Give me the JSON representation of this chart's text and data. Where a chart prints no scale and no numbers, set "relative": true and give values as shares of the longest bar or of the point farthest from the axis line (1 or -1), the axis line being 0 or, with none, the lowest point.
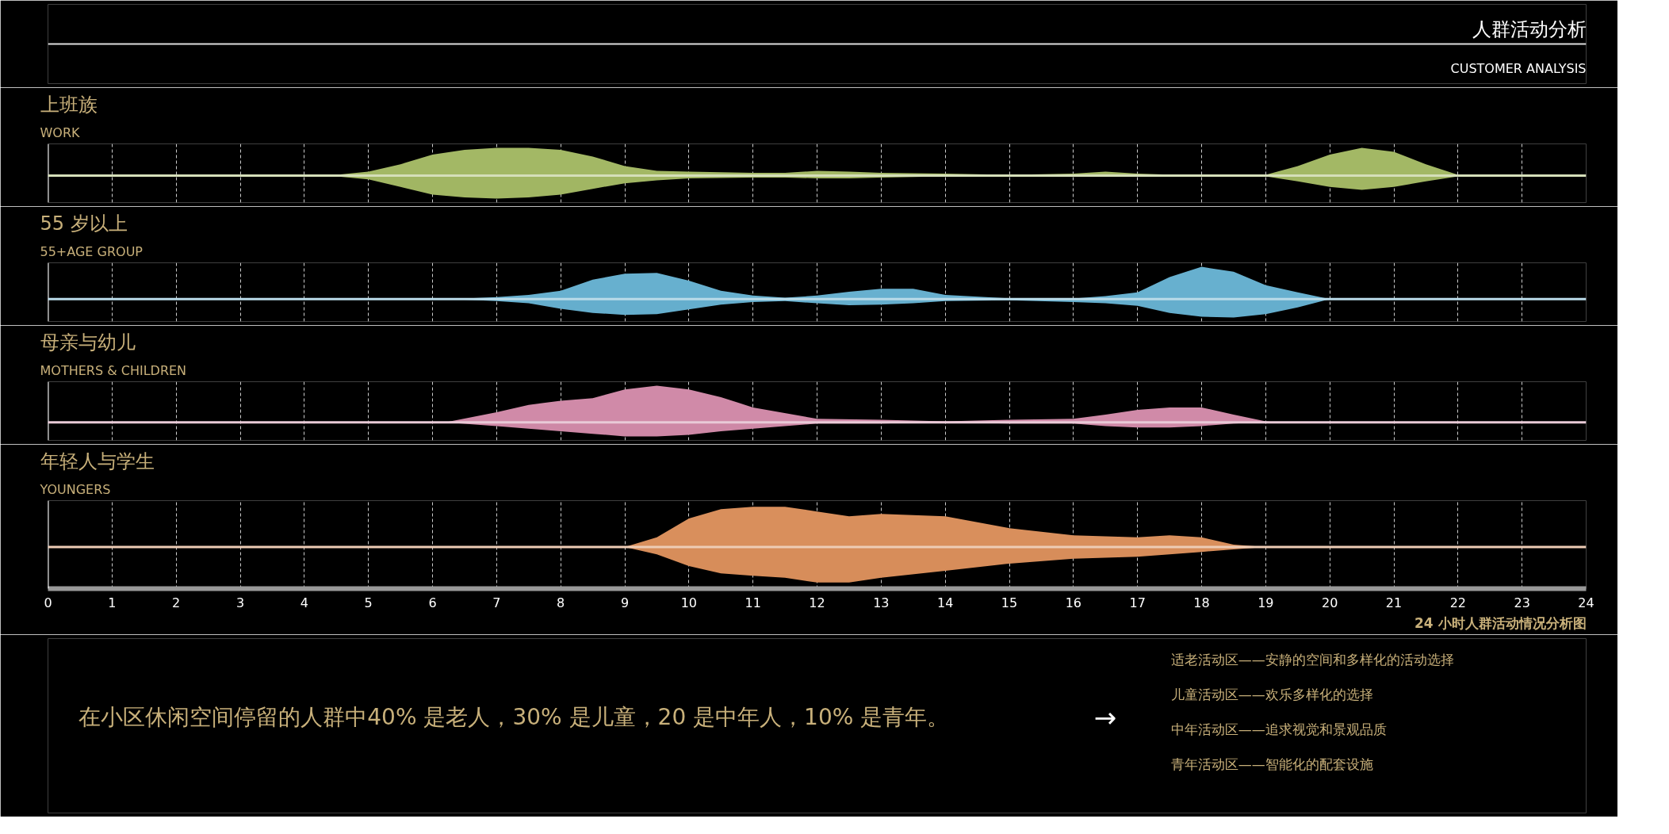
{
  "chart_data": [
    {
      "type": "other",
      "title": "人群活动分析",
      "subtitle": "CUSTOMER ANALYSIS"
    },
    {
      "type": "area",
      "relative": true,
      "title": "上班族",
      "subtitle": "WORK",
      "grid": "x",
      "tick_labels": false,
      "x": [
        0,
        4,
        4.5,
        5,
        5.5,
        6,
        6.5,
        7,
        7.5,
        8,
        8.5,
        9,
        9.5,
        10,
        11,
        11.5,
        12,
        12.5,
        13,
        14,
        15,
        16,
        16.5,
        17,
        18,
        19,
        19.5,
        20,
        20.5,
        21,
        21.5,
        22,
        24
      ],
      "xlim": [
        0,
        24
      ],
      "xticks": [
        0,
        1,
        2,
        3,
        4,
        5,
        6,
        7,
        8,
        9,
        10,
        11,
        12,
        13,
        14,
        15,
        16,
        17,
        18,
        19,
        20,
        21,
        22,
        23,
        24
      ],
      "series": [
        {
          "color": "#a3b865",
          "values": [
            0,
            0,
            0.03,
            0.14,
            0.41,
            0.76,
            0.93,
            1,
            1,
            0.93,
            0.69,
            0.34,
            0.17,
            0.14,
            0.1,
            0.1,
            0.17,
            0.14,
            0.1,
            0.07,
            0.03,
            0.07,
            0.14,
            0.07,
            0,
            0.03,
            0.34,
            0.76,
            1,
            0.86,
            0.41,
            0.03,
            0
          ]
        },
        {
          "color": "#a1b663",
          "values": [
            0,
            0,
            -0.03,
            -0.14,
            -0.41,
            -0.69,
            -0.79,
            -0.83,
            -0.79,
            -0.69,
            -0.48,
            -0.28,
            -0.17,
            -0.1,
            -0.07,
            -0.07,
            -0.1,
            -0.1,
            -0.07,
            -0.03,
            -0.03,
            0,
            0,
            0,
            0,
            -0.03,
            -0.21,
            -0.41,
            -0.52,
            -0.41,
            -0.21,
            -0.03,
            0
          ]
        }
      ]
    },
    {
      "type": "area",
      "relative": true,
      "title": "55 岁以上",
      "subtitle": "55+AGE GROUP",
      "grid": "x",
      "tick_labels": false,
      "x": [
        0,
        6,
        6.5,
        7,
        7.5,
        8,
        8.5,
        9,
        9.5,
        10,
        10.5,
        11,
        11.5,
        12,
        12.5,
        13,
        13.5,
        14,
        15,
        16,
        16.5,
        17,
        17.5,
        18,
        18.5,
        19,
        19.5,
        20,
        24
      ],
      "xlim": [
        0,
        24
      ],
      "xticks": [
        0,
        1,
        2,
        3,
        4,
        5,
        6,
        7,
        8,
        9,
        10,
        11,
        12,
        13,
        14,
        15,
        16,
        17,
        18,
        19,
        20,
        21,
        22,
        23,
        24
      ],
      "series": [
        {
          "color": "#67b0cf",
          "values": [
            0,
            0,
            0.02,
            0.06,
            0.13,
            0.26,
            0.6,
            0.79,
            0.81,
            0.57,
            0.26,
            0.11,
            0.04,
            0.11,
            0.23,
            0.32,
            0.32,
            0.13,
            0.02,
            0.02,
            0.09,
            0.21,
            0.68,
            1,
            0.85,
            0.43,
            0.21,
            0,
            0
          ]
        },
        {
          "color": "#65aecd",
          "values": [
            0,
            0,
            -0.02,
            -0.06,
            -0.13,
            -0.3,
            -0.43,
            -0.49,
            -0.47,
            -0.32,
            -0.17,
            -0.09,
            -0.06,
            -0.13,
            -0.19,
            -0.17,
            -0.13,
            -0.06,
            -0.04,
            -0.09,
            -0.13,
            -0.21,
            -0.43,
            -0.55,
            -0.57,
            -0.47,
            -0.26,
            0,
            0
          ]
        }
      ]
    },
    {
      "type": "area",
      "relative": true,
      "title": "母亲与幼儿",
      "subtitle": "MOTHERS & CHILDREN",
      "grid": "x",
      "tick_labels": false,
      "x": [
        0,
        6.2,
        7,
        7.5,
        8,
        8.5,
        9,
        9.5,
        10,
        10.5,
        11,
        12,
        13,
        14,
        15,
        16,
        16.5,
        17,
        17.5,
        18,
        18.5,
        19,
        19.2,
        24
      ],
      "xlim": [
        0,
        24
      ],
      "xticks": [
        0,
        1,
        2,
        3,
        4,
        5,
        6,
        7,
        8,
        9,
        10,
        11,
        12,
        13,
        14,
        15,
        16,
        17,
        18,
        19,
        20,
        21,
        22,
        23,
        24
      ],
      "series": [
        {
          "color": "#d08aa8",
          "values": [
            0,
            0,
            0.28,
            0.48,
            0.59,
            0.66,
            0.9,
            1,
            0.9,
            0.69,
            0.41,
            0.1,
            0.07,
            0.03,
            0.07,
            0.1,
            0.21,
            0.34,
            0.41,
            0.41,
            0.21,
            0.03,
            0,
            0
          ]
        },
        {
          "color": "#ce88a6",
          "values": [
            0,
            0,
            -0.1,
            -0.17,
            -0.24,
            -0.31,
            -0.38,
            -0.38,
            -0.34,
            -0.24,
            -0.17,
            -0.03,
            -0.03,
            0,
            -0.03,
            -0.03,
            -0.1,
            -0.14,
            -0.14,
            -0.1,
            -0.03,
            0,
            0,
            0
          ]
        }
      ]
    },
    {
      "type": "area",
      "relative": true,
      "title": "年轻人与学生",
      "subtitle": "YOUNGERS",
      "grid": "x",
      "tick_labels": "x",
      "x": [
        0,
        9,
        9.5,
        10,
        10.5,
        11,
        11.5,
        12,
        12.5,
        13,
        14,
        15,
        16,
        17,
        17.5,
        18,
        18.5,
        19,
        24
      ],
      "xlim": [
        0,
        24
      ],
      "xticks": [
        0,
        1,
        2,
        3,
        4,
        5,
        6,
        7,
        8,
        9,
        10,
        11,
        12,
        13,
        14,
        15,
        16,
        17,
        18,
        19,
        20,
        21,
        22,
        23,
        24
      ],
      "annotations": [
        "24 小时人群活动情况分析图"
      ],
      "series": [
        {
          "color": "#d98f5c",
          "values": [
            0,
            0,
            0.24,
            0.71,
            0.94,
            1,
            1,
            0.88,
            0.76,
            0.82,
            0.76,
            0.47,
            0.29,
            0.24,
            0.29,
            0.24,
            0.06,
            0,
            0
          ]
        },
        {
          "color": "#d78d5a",
          "values": [
            0,
            0,
            -0.18,
            -0.47,
            -0.65,
            -0.71,
            -0.76,
            -0.88,
            -0.88,
            -0.76,
            -0.59,
            -0.41,
            -0.29,
            -0.24,
            -0.18,
            -0.12,
            -0.06,
            0,
            0
          ]
        }
      ]
    },
    {
      "type": "other",
      "annotations": [
        "在小区休闲空间停留的人群中40% 是老人，30% 是儿童，20 是中年人，10% 是青年。",
        "→",
        "适老活动区——安静的空间和多样化的活动选择",
        "儿童活动区——欢乐多样化的选择",
        "中年活动区——追求视觉和景观品质",
        "青年活动区——智能化的配套设施"
      ]
    }
  ]
}
